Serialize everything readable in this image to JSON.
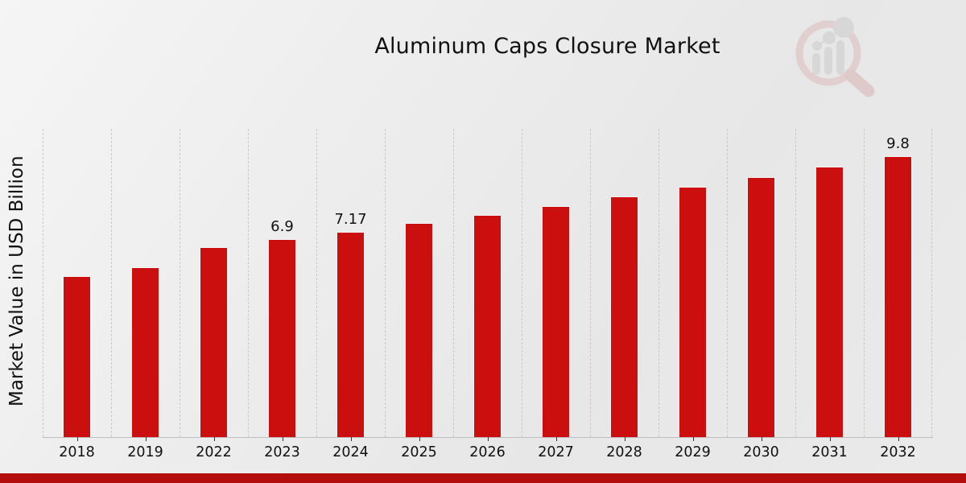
{
  "title": "Aluminum Caps Closure Market",
  "y_axis_label": "Market Value in USD Billion",
  "colors": {
    "bar": "#cb0e0e",
    "bar_border": "#f4f4f4",
    "bottom_band": "#b30d0d",
    "gridline": "#c9c9c9",
    "axis_line": "#bfbfbf",
    "text": "#111111",
    "background_light": "#f5f5f5",
    "background_dark": "#e7e7e7",
    "logo_ring": "#ddb6b6",
    "logo_bars": "#c6c6c6"
  },
  "logo": {
    "name": "magnifier-bar-chart-watermark"
  },
  "chart_data": {
    "type": "bar",
    "title": "Aluminum Caps Closure Market",
    "xlabel": "",
    "ylabel": "Market Value in USD Billion",
    "categories": [
      "2018",
      "2019",
      "2022",
      "2023",
      "2024",
      "2025",
      "2026",
      "2027",
      "2028",
      "2029",
      "2030",
      "2031",
      "2032"
    ],
    "values": [
      5.61,
      5.91,
      6.63,
      6.9,
      7.17,
      7.46,
      7.75,
      8.06,
      8.38,
      8.72,
      9.06,
      9.43,
      9.8
    ],
    "data_labels": {
      "2023": "6.9",
      "2024": "7.17",
      "2032": "9.8"
    },
    "ylim": [
      0,
      10.75
    ],
    "grid": "vertical-dashed",
    "legend": "none",
    "bar_color": "#cb0e0e"
  }
}
